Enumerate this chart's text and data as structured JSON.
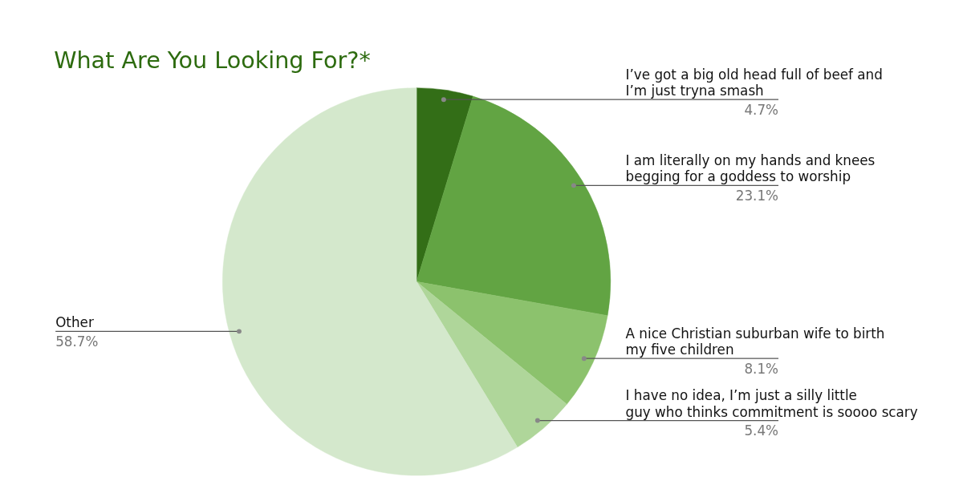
{
  "chart_data": {
    "type": "pie",
    "title": "What Are You Looking For?*",
    "categories": [
      "I’ve got a big old head full of beef and I’m just tryna smash",
      "I am literally on my hands and knees begging for a goddess to worship",
      "A nice Christian suburban wife to birth my five children",
      "I have no idea, I’m just a silly little guy who thinks commitment is soooo scary",
      "Other"
    ],
    "values": [
      4.7,
      23.1,
      8.1,
      5.4,
      58.7
    ],
    "colors": [
      "#336e17",
      "#62a443",
      "#8cc26d",
      "#afd69a",
      "#d4e8cc"
    ],
    "value_labels": [
      "4.7%",
      "23.1%",
      "8.1%",
      "5.4%",
      "58.7%"
    ]
  }
}
